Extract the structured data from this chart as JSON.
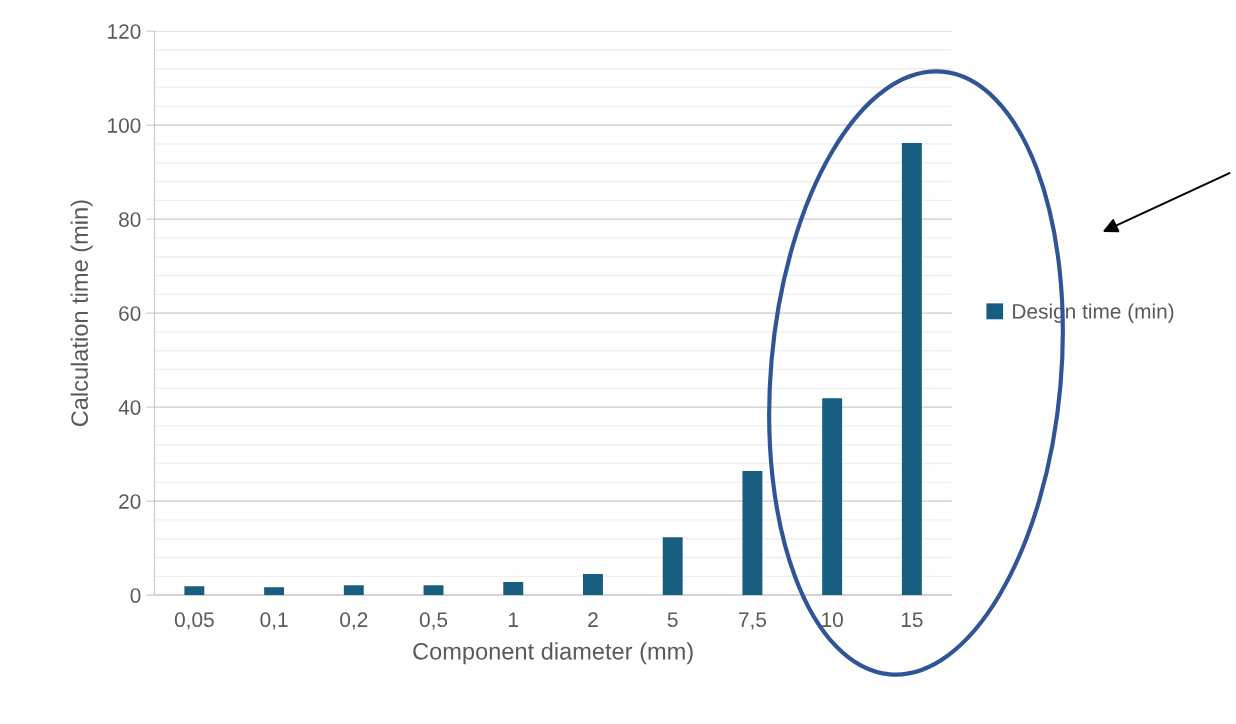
{
  "chart_data": {
    "type": "bar",
    "xlabel": "Component diameter (mm)",
    "ylabel": "Calculation time (min)",
    "categories": [
      "0,05",
      "0,1",
      "0,2",
      "0,5",
      "1",
      "2",
      "5",
      "7,5",
      "10",
      "15"
    ],
    "series": [
      {
        "name": "Design time (min)",
        "color": "#175e80",
        "values": [
          1.9,
          1.7,
          2.1,
          2.1,
          2.8,
          4.5,
          12.3,
          26.4,
          41.9,
          96.2
        ]
      }
    ],
    "ylim": [
      0,
      120
    ],
    "yticks": [
      0,
      20,
      40,
      60,
      80,
      100,
      120
    ],
    "grid": "y",
    "legend": "right"
  }
}
